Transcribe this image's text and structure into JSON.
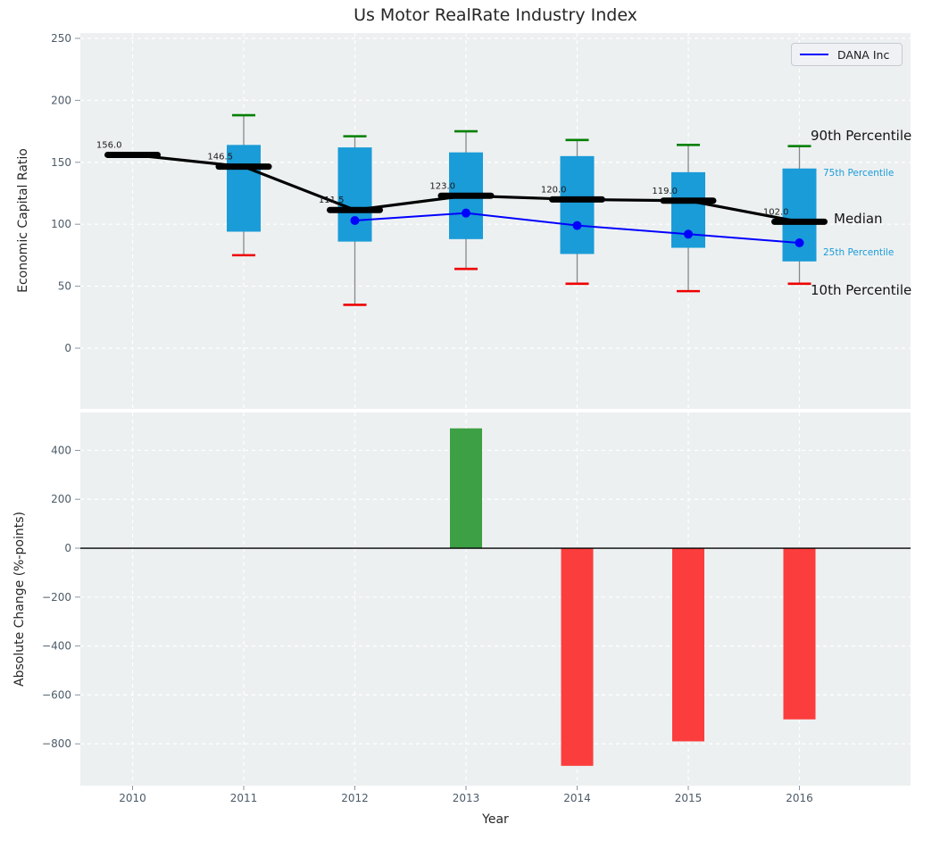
{
  "title": "Us Motor RealRate Industry Index",
  "legend": {
    "label": "DANA Inc"
  },
  "annotations": {
    "p90": "90th Percentile",
    "p75": "75th Percentile",
    "median": "Median",
    "p25": "25th Percentile",
    "p10": "10th Percentile"
  },
  "colors": {
    "box": "#1a9cd8",
    "median_line": "#000000",
    "dana_line": "#0000ff",
    "cap_top": "#008000",
    "cap_bottom": "#ee0000",
    "whisker": "#888888",
    "bar_positive": "#3da044",
    "bar_negative": "#fb3d3d",
    "plot_bg": "#edf0f1",
    "grid": "#ffffff",
    "tick_label": "#4c5b68",
    "zero_line": "#000000"
  },
  "chart_data": [
    {
      "type": "boxplot-with-line",
      "title": "Us Motor RealRate Industry Index",
      "ylabel": "Economic Capital Ratio",
      "yticks": [
        250,
        200,
        150,
        100,
        50,
        0
      ],
      "ytick_labels": [
        "250",
        "200",
        "150",
        "100",
        "50",
        "0"
      ],
      "ylim": [
        -49,
        254.3
      ],
      "xlim": [
        2009.53,
        2017.0
      ],
      "grid": true,
      "legend_position": "upper right",
      "boxes": [
        {
          "year": 2010,
          "p10": null,
          "p25": null,
          "median": 156.0,
          "p75": null,
          "p90": null,
          "label": "156.0"
        },
        {
          "year": 2011,
          "p10": 75,
          "p25": 94,
          "median": 146.5,
          "p75": 164,
          "p90": 188,
          "label": "146.5"
        },
        {
          "year": 2012,
          "p10": 35,
          "p25": 86,
          "median": 111.5,
          "p75": 162,
          "p90": 171,
          "label": "111.5"
        },
        {
          "year": 2013,
          "p10": 64,
          "p25": 88,
          "median": 123.0,
          "p75": 158,
          "p90": 175,
          "label": "123.0"
        },
        {
          "year": 2014,
          "p10": 52,
          "p25": 76,
          "median": 120.0,
          "p75": 155,
          "p90": 168,
          "label": "120.0"
        },
        {
          "year": 2015,
          "p10": 46,
          "p25": 81,
          "median": 119.0,
          "p75": 142,
          "p90": 164,
          "label": "119.0"
        },
        {
          "year": 2016,
          "p10": 52,
          "p25": 70,
          "median": 102.0,
          "p75": 145,
          "p90": 163,
          "label": "102.0"
        }
      ],
      "series": [
        {
          "name": "DANA Inc",
          "x": [
            2012,
            2013,
            2014,
            2015,
            2016
          ],
          "values": [
            103,
            109,
            99,
            92,
            85
          ]
        }
      ]
    },
    {
      "type": "bar",
      "xlabel": "Year",
      "ylabel": "Absolute Change (%-points)",
      "categories": [
        2010,
        2011,
        2012,
        2013,
        2014,
        2015,
        2016
      ],
      "xtick_labels": [
        "2010",
        "2011",
        "2012",
        "2013",
        "2014",
        "2015",
        "2016"
      ],
      "values": [
        null,
        null,
        null,
        490,
        -890,
        -790,
        -700
      ],
      "yticks": [
        400,
        200,
        0,
        -200,
        -400,
        -600,
        -800
      ],
      "ytick_labels": [
        "400",
        "200",
        "0",
        "−200",
        "−400",
        "−600",
        "−800"
      ],
      "ylim": [
        -971,
        555
      ],
      "xlim": [
        2009.53,
        2017.0
      ],
      "grid": true
    }
  ]
}
